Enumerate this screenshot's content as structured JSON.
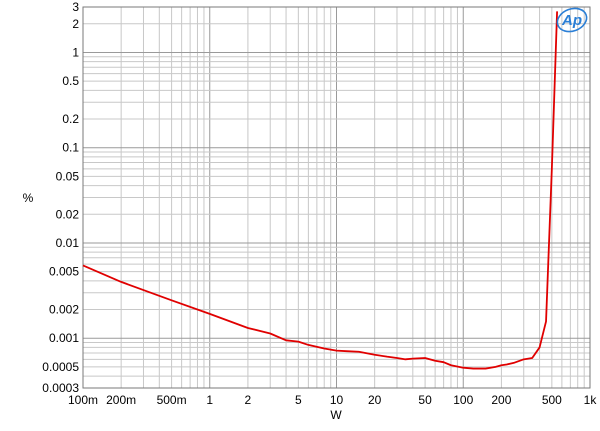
{
  "chart_data": {
    "type": "line",
    "xlabel": "W",
    "ylabel": "%",
    "x_scale": "log",
    "y_scale": "log",
    "xlim": [
      0.1,
      1000
    ],
    "ylim": [
      0.0003,
      3
    ],
    "grid": true,
    "logo": "Ap",
    "x_ticks": [
      {
        "value": 0.1,
        "label": "100m"
      },
      {
        "value": 0.2,
        "label": "200m"
      },
      {
        "value": 0.5,
        "label": "500m"
      },
      {
        "value": 1,
        "label": "1"
      },
      {
        "value": 2,
        "label": "2"
      },
      {
        "value": 5,
        "label": "5"
      },
      {
        "value": 10,
        "label": "10"
      },
      {
        "value": 20,
        "label": "20"
      },
      {
        "value": 50,
        "label": "50"
      },
      {
        "value": 100,
        "label": "100"
      },
      {
        "value": 200,
        "label": "200"
      },
      {
        "value": 500,
        "label": "500"
      },
      {
        "value": 1000,
        "label": "1k"
      }
    ],
    "y_ticks": [
      {
        "value": 3,
        "label": "3"
      },
      {
        "value": 2,
        "label": "2"
      },
      {
        "value": 1,
        "label": "1"
      },
      {
        "value": 0.5,
        "label": "0.5"
      },
      {
        "value": 0.2,
        "label": "0.2"
      },
      {
        "value": 0.1,
        "label": "0.1"
      },
      {
        "value": 0.05,
        "label": "0.05"
      },
      {
        "value": 0.02,
        "label": "0.02"
      },
      {
        "value": 0.01,
        "label": "0.01"
      },
      {
        "value": 0.005,
        "label": "0.005"
      },
      {
        "value": 0.002,
        "label": "0.002"
      },
      {
        "value": 0.001,
        "label": "0.001"
      },
      {
        "value": 0.0005,
        "label": "0.0005"
      },
      {
        "value": 0.0003,
        "label": "0.0003"
      }
    ],
    "series": [
      {
        "color": "#e00000",
        "x": [
          0.1,
          0.2,
          0.5,
          1,
          2,
          3,
          4,
          5,
          6,
          8,
          10,
          12,
          15,
          20,
          25,
          30,
          35,
          40,
          50,
          60,
          70,
          80,
          100,
          120,
          150,
          180,
          200,
          220,
          250,
          300,
          350,
          400,
          450,
          500,
          550
        ],
        "y": [
          0.0058,
          0.0039,
          0.0025,
          0.0018,
          0.00128,
          0.00112,
          0.00095,
          0.00092,
          0.00085,
          0.00078,
          0.00074,
          0.00073,
          0.00072,
          0.00067,
          0.00064,
          0.00062,
          0.0006,
          0.00061,
          0.00062,
          0.00058,
          0.00056,
          0.00052,
          0.00049,
          0.00048,
          0.00048,
          0.0005,
          0.00052,
          0.00053,
          0.00055,
          0.0006,
          0.00062,
          0.0008,
          0.0015,
          0.06,
          2.7
        ]
      }
    ]
  }
}
